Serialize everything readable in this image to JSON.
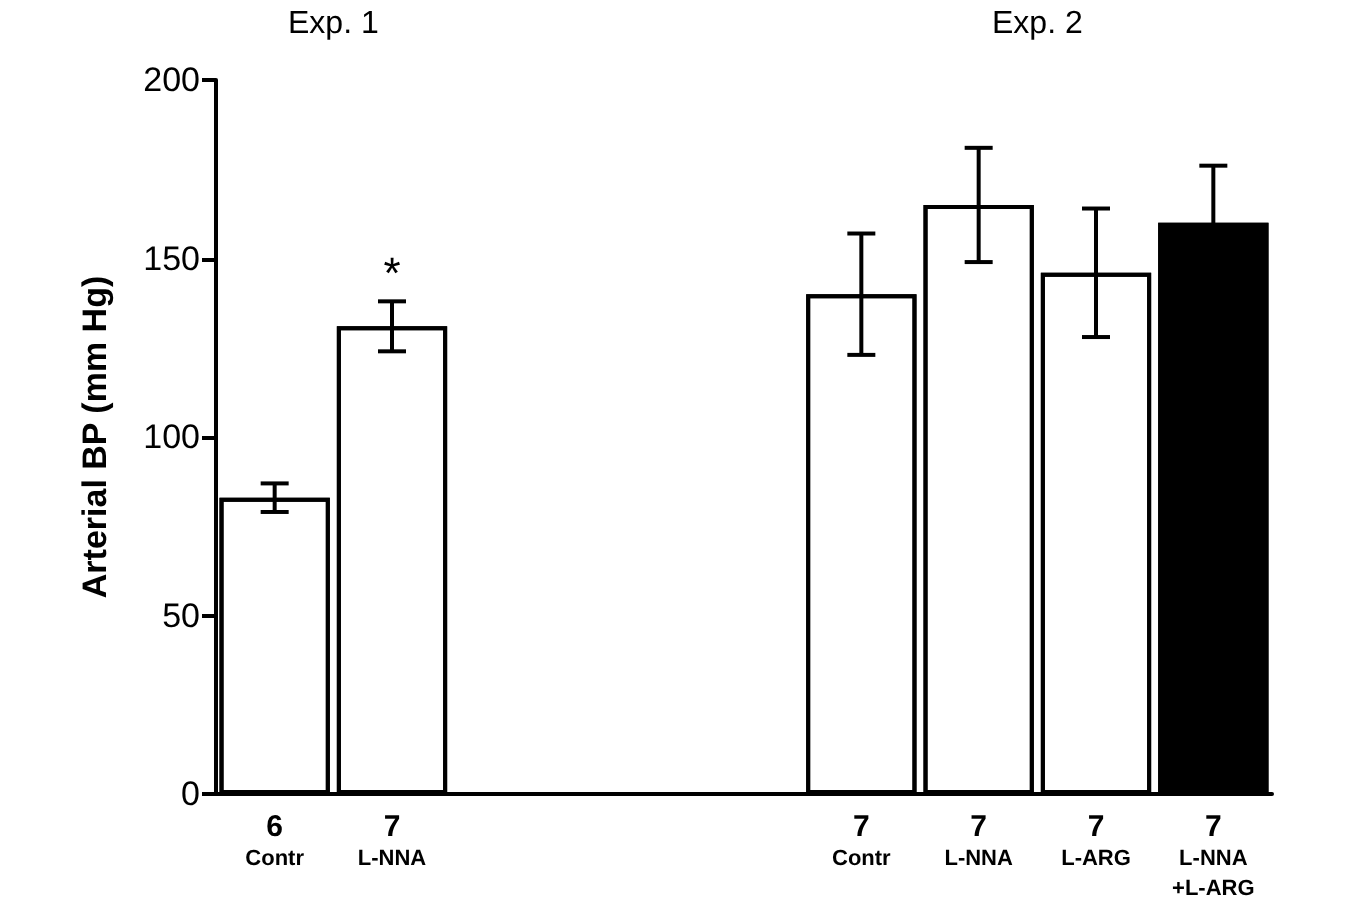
{
  "chart_data": {
    "type": "bar",
    "ylabel": "Arterial BP (mm Hg)",
    "categories": [
      "6\nContr",
      "7\nL-NNA",
      null,
      null,
      null,
      "7\nContr",
      "7\nL-NNA",
      "7\nL-ARG",
      "7\nL-NNA\n+L-ARG"
    ],
    "values": [
      83,
      131,
      null,
      null,
      null,
      140,
      165,
      146,
      160
    ],
    "errors": [
      4,
      7,
      null,
      null,
      null,
      17,
      16,
      18,
      16
    ],
    "colors": [
      "#ffffff",
      "#ffffff",
      null,
      null,
      null,
      "#ffffff",
      "#ffffff",
      "#ffffff",
      "#000000"
    ],
    "ylim": [
      0,
      200
    ],
    "yticks": [
      0,
      50,
      100,
      150,
      200
    ],
    "annotations": [
      "Exp. 1",
      "Exp. 2",
      "*"
    ],
    "grid": false
  }
}
